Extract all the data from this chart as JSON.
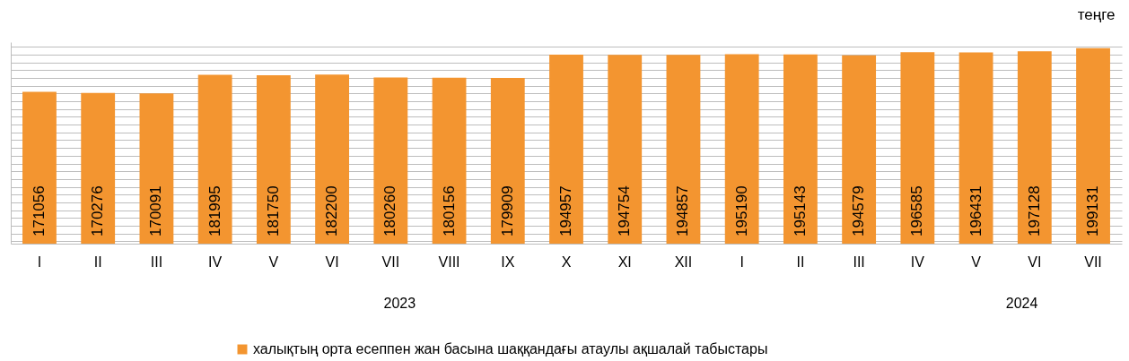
{
  "chart_data": {
    "type": "bar",
    "ylabel": "теңге",
    "categories": [
      "I",
      "II",
      "III",
      "IV",
      "V",
      "VI",
      "VII",
      "VIII",
      "IX",
      "X",
      "XI",
      "XII",
      "I",
      "II",
      "III",
      "IV",
      "V",
      "VI",
      "VII"
    ],
    "series": [
      {
        "name": "халықтың орта есеппен жан басына шаққандағы атаулы ақшалай табыстары",
        "color": "#f39530",
        "values": [
          171056,
          170276,
          170091,
          181995,
          181750,
          182200,
          180260,
          180156,
          179909,
          194957,
          194754,
          194857,
          195190,
          195143,
          194579,
          196585,
          196431,
          197128,
          199131
        ]
      }
    ],
    "ylim": [
      73500,
      203000
    ],
    "grid": "y",
    "data_labels": true,
    "legend": "bottom",
    "annotations": [
      "2023",
      "2024"
    ]
  }
}
